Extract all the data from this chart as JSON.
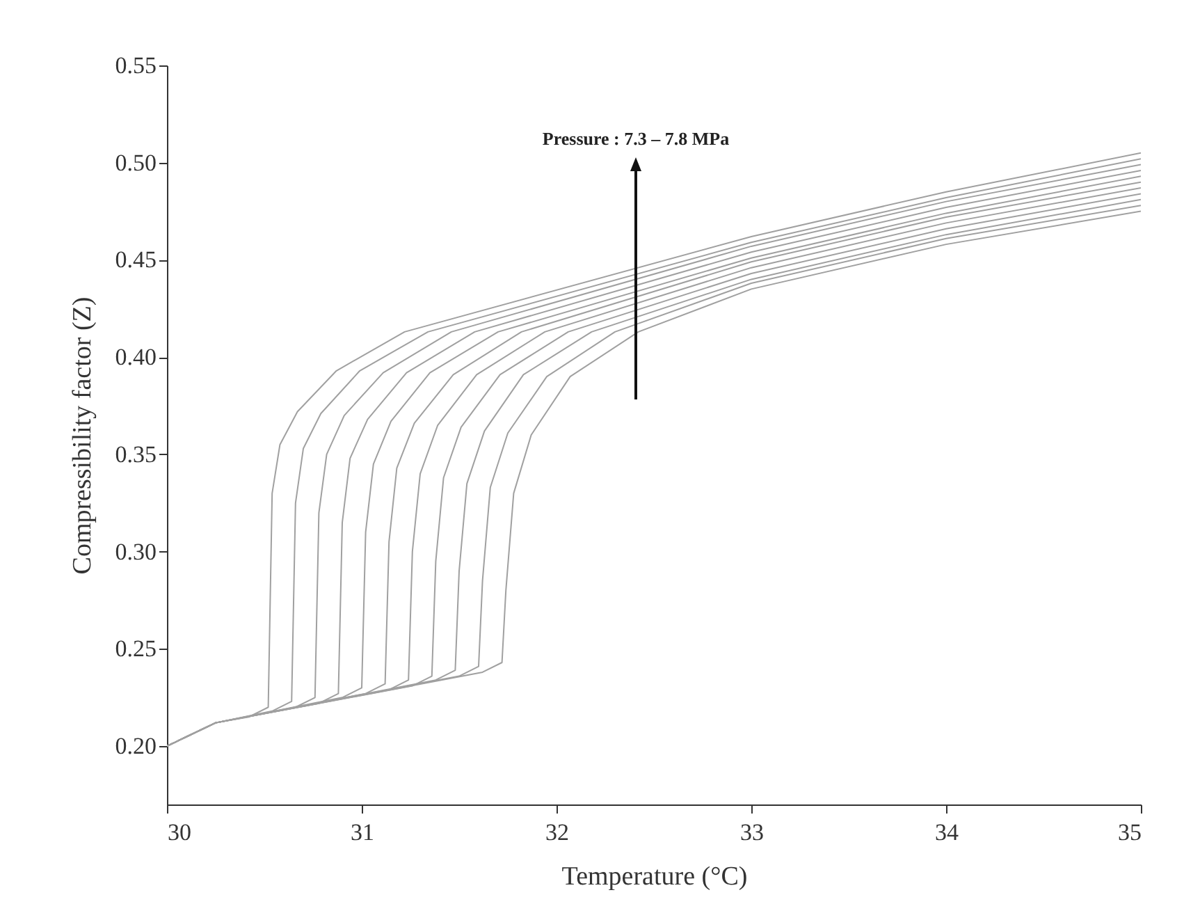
{
  "chart_data": {
    "type": "line",
    "xlabel": "Temperature (°C)",
    "ylabel": "Compressibility factor (Z)",
    "annotations": [
      "Pressure : 7.3 – 7.8 MPa"
    ],
    "xlim": [
      30,
      35
    ],
    "xticks": [
      30,
      31,
      32,
      33,
      34,
      35
    ],
    "ylim": [
      0.17,
      0.55
    ],
    "yticks": [
      {
        "value": 0.2,
        "label": "0.20"
      },
      {
        "value": 0.25,
        "label": "0.25"
      },
      {
        "value": 0.3,
        "label": "0.30"
      },
      {
        "value": 0.35,
        "label": "0.35"
      },
      {
        "value": 0.4,
        "label": "0.40"
      },
      {
        "value": 0.45,
        "label": "0.45"
      },
      {
        "value": 0.5,
        "label": "0.50"
      },
      {
        "value": 0.55,
        "label": "0.55"
      }
    ],
    "grid": false,
    "legend": false,
    "marker": "none",
    "line_style": "solid",
    "series": [
      {
        "color": "#a0a0a0",
        "x": [
          30,
          30.25,
          30.42,
          30.52,
          30.54,
          30.58,
          30.67,
          30.87,
          31.22,
          33,
          34,
          35
        ],
        "values": [
          0.2,
          0.212,
          0.215,
          0.22,
          0.33,
          0.355,
          0.372,
          0.393,
          0.413,
          0.462,
          0.485,
          0.505
        ]
      },
      {
        "color": "#a0a0a0",
        "x": [
          30,
          30.25,
          30.54,
          30.64,
          30.66,
          30.7,
          30.79,
          30.99,
          31.34,
          33,
          34,
          35
        ],
        "values": [
          0.2,
          0.212,
          0.218,
          0.223,
          0.325,
          0.353,
          0.371,
          0.393,
          0.413,
          0.459,
          0.482,
          0.502
        ]
      },
      {
        "color": "#a0a0a0",
        "x": [
          30,
          30.25,
          30.66,
          30.76,
          30.78,
          30.82,
          30.91,
          31.11,
          31.46,
          33,
          34,
          35
        ],
        "values": [
          0.2,
          0.212,
          0.22,
          0.225,
          0.32,
          0.35,
          0.37,
          0.392,
          0.413,
          0.457,
          0.48,
          0.499
        ]
      },
      {
        "color": "#a0a0a0",
        "x": [
          30,
          30.25,
          30.78,
          30.88,
          30.9,
          30.94,
          31.03,
          31.23,
          31.58,
          33,
          34,
          35
        ],
        "values": [
          0.2,
          0.212,
          0.222,
          0.227,
          0.315,
          0.348,
          0.368,
          0.392,
          0.413,
          0.454,
          0.477,
          0.496
        ]
      },
      {
        "color": "#a0a0a0",
        "x": [
          30,
          30.25,
          30.9,
          31.0,
          31.02,
          31.06,
          31.15,
          31.35,
          31.7,
          33,
          34,
          35
        ],
        "values": [
          0.2,
          0.212,
          0.225,
          0.23,
          0.31,
          0.345,
          0.367,
          0.392,
          0.413,
          0.451,
          0.474,
          0.493
        ]
      },
      {
        "color": "#a0a0a0",
        "x": [
          30,
          30.25,
          31.02,
          31.12,
          31.14,
          31.18,
          31.27,
          31.47,
          31.82,
          33,
          34,
          35
        ],
        "values": [
          0.2,
          0.212,
          0.227,
          0.232,
          0.305,
          0.343,
          0.366,
          0.391,
          0.413,
          0.449,
          0.472,
          0.49
        ]
      },
      {
        "color": "#a0a0a0",
        "x": [
          30,
          30.25,
          31.14,
          31.24,
          31.26,
          31.3,
          31.39,
          31.59,
          31.94,
          33,
          34,
          35
        ],
        "values": [
          0.2,
          0.212,
          0.229,
          0.234,
          0.3,
          0.34,
          0.365,
          0.391,
          0.413,
          0.446,
          0.469,
          0.487
        ]
      },
      {
        "color": "#a0a0a0",
        "x": [
          30,
          30.25,
          31.26,
          31.36,
          31.38,
          31.42,
          31.51,
          31.71,
          32.06,
          33,
          34,
          35
        ],
        "values": [
          0.2,
          0.212,
          0.231,
          0.236,
          0.295,
          0.338,
          0.364,
          0.391,
          0.413,
          0.443,
          0.466,
          0.484
        ]
      },
      {
        "color": "#a0a0a0",
        "x": [
          30,
          30.25,
          31.38,
          31.48,
          31.5,
          31.54,
          31.63,
          31.83,
          32.18,
          33,
          34,
          35
        ],
        "values": [
          0.2,
          0.212,
          0.234,
          0.239,
          0.29,
          0.335,
          0.362,
          0.391,
          0.413,
          0.44,
          0.463,
          0.481
        ]
      },
      {
        "color": "#a0a0a0",
        "x": [
          30,
          30.25,
          31.5,
          31.6,
          31.62,
          31.66,
          31.75,
          31.95,
          32.3,
          33,
          34,
          35
        ],
        "values": [
          0.2,
          0.212,
          0.236,
          0.241,
          0.285,
          0.333,
          0.361,
          0.39,
          0.413,
          0.438,
          0.461,
          0.478
        ]
      },
      {
        "color": "#a0a0a0",
        "x": [
          30,
          30.25,
          31.62,
          31.72,
          31.74,
          31.78,
          31.87,
          32.07,
          32.42,
          33,
          34,
          35
        ],
        "values": [
          0.2,
          0.212,
          0.238,
          0.243,
          0.28,
          0.33,
          0.36,
          0.39,
          0.413,
          0.435,
          0.458,
          0.475
        ]
      }
    ]
  }
}
